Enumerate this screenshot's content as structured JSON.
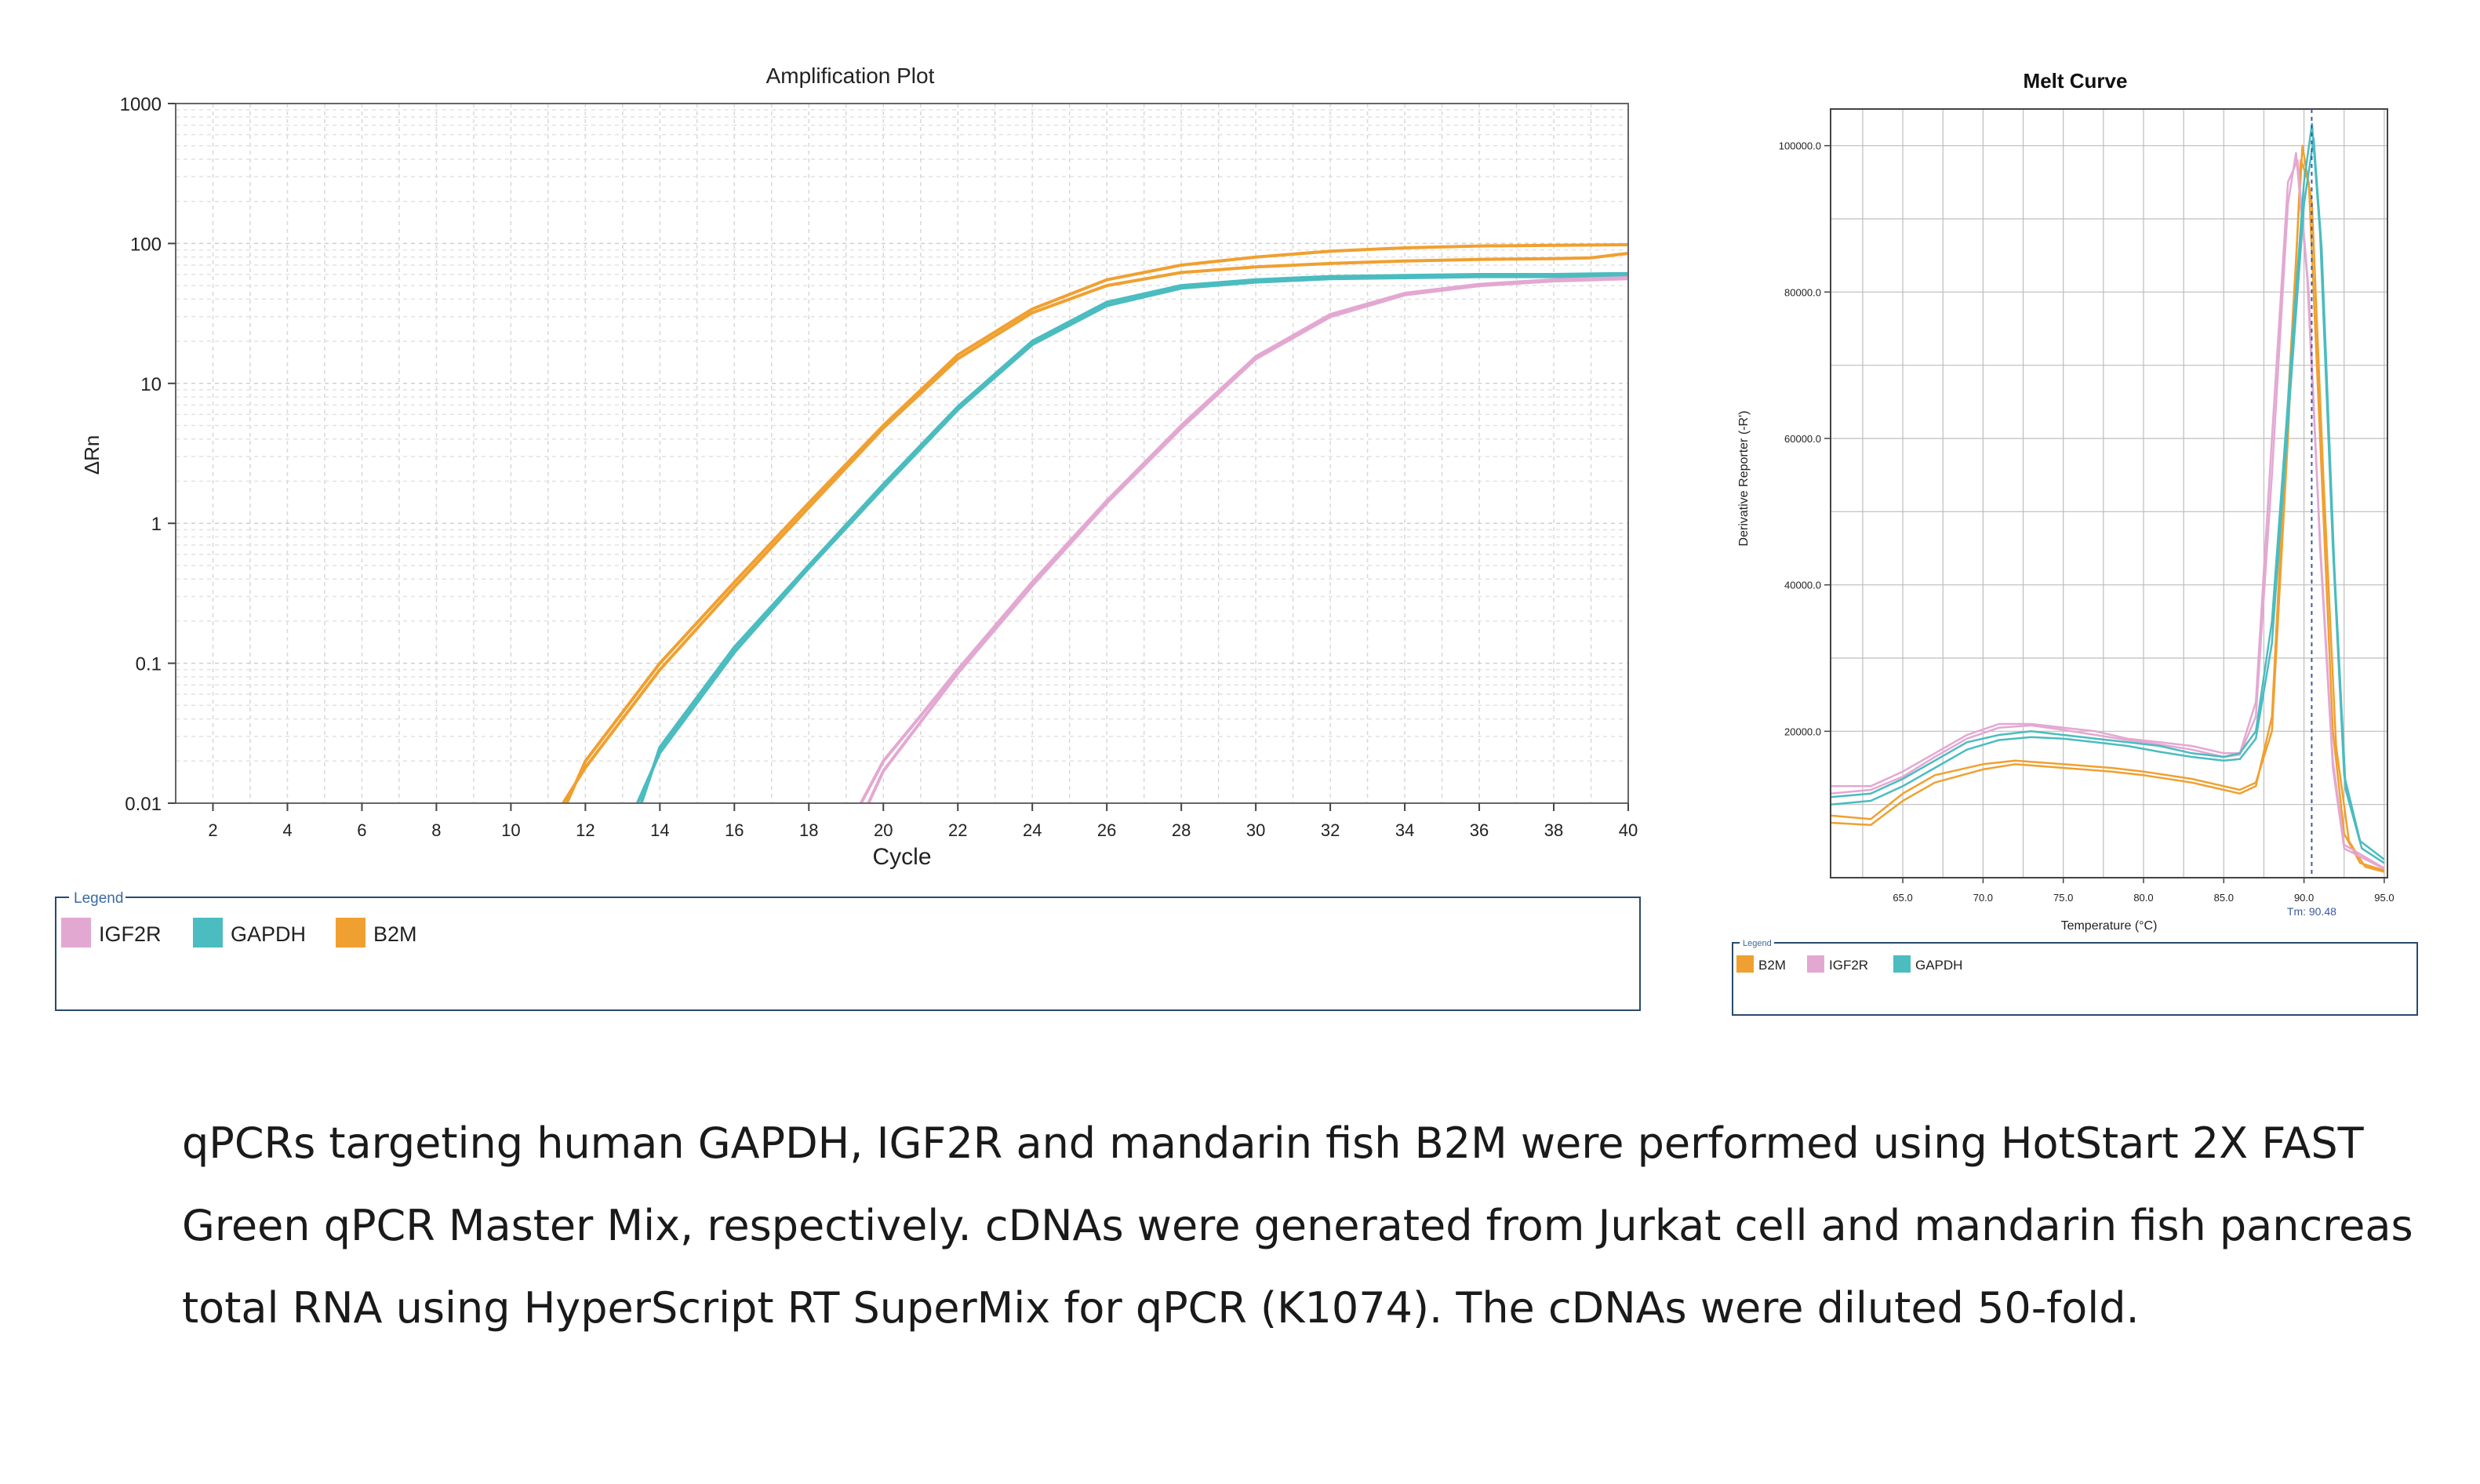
{
  "caption_lines": [
    "qPCRs targeting human GAPDH, IGF2R and mandarin fish B2M were performed using HotStart 2X FAST",
    "Green qPCR Master Mix, respectively. cDNAs were generated from Jurkat cell and mandarin fish pancreas",
    "total RNA using HyperScript RT SuperMix for qPCR (K1074). The cDNAs were diluted 50-fold."
  ],
  "colors": {
    "IGF2R": "#e3a8d2",
    "GAPDH": "#4bbcbf",
    "B2M": "#f0a030",
    "legend_border": "#2a4a6a",
    "legend_title": "#3a6aa0"
  },
  "chart_data": [
    {
      "type": "line",
      "title": "Amplification Plot",
      "xlabel": "Cycle",
      "ylabel": "ΔRn",
      "yscale": "log",
      "xlim": [
        1,
        40
      ],
      "ylim": [
        0.01,
        1000
      ],
      "xticks": [
        "2",
        "4",
        "6",
        "8",
        "10",
        "12",
        "14",
        "16",
        "18",
        "20",
        "22",
        "24",
        "26",
        "28",
        "30",
        "32",
        "34",
        "36",
        "38",
        "40"
      ],
      "yticks": [
        "0.01",
        "0.1",
        "1",
        "10",
        "100",
        "1000"
      ],
      "grid": true,
      "legend": {
        "title": "Legend",
        "position": "bottom",
        "entries": [
          "IGF2R",
          "GAPDH",
          "B2M"
        ]
      },
      "series": [
        {
          "name": "B2M",
          "color": "#f0a030",
          "points": [
            [
              11.5,
              0.01
            ],
            [
              12,
              0.02
            ],
            [
              14,
              0.1
            ],
            [
              16,
              0.38
            ],
            [
              18,
              1.4
            ],
            [
              20,
              5
            ],
            [
              22,
              16
            ],
            [
              24,
              34
            ],
            [
              26,
              55
            ],
            [
              28,
              70
            ],
            [
              30,
              80
            ],
            [
              32,
              88
            ],
            [
              34,
              93
            ],
            [
              36,
              96
            ],
            [
              38,
              97
            ],
            [
              40,
              98
            ]
          ]
        },
        {
          "name": "B2M",
          "color": "#f0a030",
          "points": [
            [
              11.4,
              0.01
            ],
            [
              12,
              0.018
            ],
            [
              14,
              0.09
            ],
            [
              16,
              0.35
            ],
            [
              18,
              1.3
            ],
            [
              20,
              4.8
            ],
            [
              22,
              15
            ],
            [
              24,
              32
            ],
            [
              26,
              50
            ],
            [
              28,
              62
            ],
            [
              30,
              68
            ],
            [
              32,
              72
            ],
            [
              34,
              75
            ],
            [
              36,
              77
            ],
            [
              38,
              78
            ],
            [
              39,
              79
            ],
            [
              40,
              85
            ]
          ]
        },
        {
          "name": "GAPDH",
          "color": "#4bbcbf",
          "points": [
            [
              13.5,
              0.01
            ],
            [
              14,
              0.025
            ],
            [
              16,
              0.13
            ],
            [
              18,
              0.5
            ],
            [
              20,
              1.9
            ],
            [
              22,
              6.8
            ],
            [
              24,
              20
            ],
            [
              26,
              38
            ],
            [
              28,
              50
            ],
            [
              30,
              55
            ],
            [
              32,
              58
            ],
            [
              34,
              59
            ],
            [
              36,
              60
            ],
            [
              38,
              60
            ],
            [
              40,
              61
            ]
          ]
        },
        {
          "name": "GAPDH",
          "color": "#4bbcbf",
          "points": [
            [
              13.4,
              0.01
            ],
            [
              14,
              0.023
            ],
            [
              16,
              0.12
            ],
            [
              18,
              0.48
            ],
            [
              20,
              1.8
            ],
            [
              22,
              6.5
            ],
            [
              24,
              19
            ],
            [
              26,
              36
            ],
            [
              28,
              48
            ],
            [
              30,
              53
            ],
            [
              32,
              56
            ],
            [
              34,
              57
            ],
            [
              36,
              58
            ],
            [
              38,
              58
            ],
            [
              40,
              58
            ]
          ]
        },
        {
          "name": "IGF2R",
          "color": "#e3a8d2",
          "points": [
            [
              19.6,
              0.01
            ],
            [
              20,
              0.017
            ],
            [
              21,
              0.038
            ],
            [
              22,
              0.085
            ],
            [
              24,
              0.36
            ],
            [
              26,
              1.4
            ],
            [
              28,
              4.8
            ],
            [
              30,
              15
            ],
            [
              32,
              30
            ],
            [
              34,
              43
            ],
            [
              36,
              50
            ],
            [
              38,
              54
            ],
            [
              40,
              56
            ]
          ]
        },
        {
          "name": "IGF2R",
          "color": "#e3a8d2",
          "points": [
            [
              19.4,
              0.01
            ],
            [
              20,
              0.02
            ],
            [
              21,
              0.042
            ],
            [
              22,
              0.09
            ],
            [
              24,
              0.38
            ],
            [
              26,
              1.45
            ],
            [
              28,
              5
            ],
            [
              30,
              15.5
            ],
            [
              32,
              31
            ],
            [
              34,
              44
            ],
            [
              36,
              51
            ],
            [
              38,
              55
            ],
            [
              40,
              57
            ]
          ]
        }
      ]
    },
    {
      "type": "line",
      "title": "Melt Curve",
      "xlabel": "Temperature (°C)",
      "ylabel": "Derivative Reporter (-R')",
      "xlim": [
        60.5,
        95.2
      ],
      "ylim": [
        0,
        105000
      ],
      "xticks": [
        "65.0",
        "70.0",
        "75.0",
        "80.0",
        "85.0",
        "90.0",
        "95.0"
      ],
      "yticks": [
        "20000.0",
        "40000.0",
        "60000.0",
        "80000.0",
        "100000.0"
      ],
      "grid": true,
      "tm_label": "Tm: 90.48",
      "tm_value": 90.48,
      "legend": {
        "title": "Legend",
        "position": "bottom",
        "entries": [
          "B2M",
          "IGF2R",
          "GAPDH"
        ]
      },
      "series": [
        {
          "name": "B2M",
          "color": "#f0a030",
          "points": [
            [
              60.5,
              8500
            ],
            [
              63,
              8000
            ],
            [
              65,
              11500
            ],
            [
              67,
              14000
            ],
            [
              70,
              15500
            ],
            [
              72,
              16000
            ],
            [
              75,
              15500
            ],
            [
              78,
              15000
            ],
            [
              80,
              14500
            ],
            [
              83,
              13500
            ],
            [
              85,
              12500
            ],
            [
              86,
              12000
            ],
            [
              87,
              13000
            ],
            [
              88,
              20000
            ],
            [
              89,
              60000
            ],
            [
              89.8,
              98000
            ],
            [
              90.3,
              95000
            ],
            [
              91,
              60000
            ],
            [
              91.8,
              20000
            ],
            [
              92.5,
              6000
            ],
            [
              93.5,
              2000
            ],
            [
              95,
              1000
            ]
          ]
        },
        {
          "name": "B2M",
          "color": "#f0a030",
          "points": [
            [
              60.5,
              7500
            ],
            [
              63,
              7200
            ],
            [
              65,
              10500
            ],
            [
              67,
              13000
            ],
            [
              70,
              14800
            ],
            [
              72,
              15500
            ],
            [
              75,
              15000
            ],
            [
              78,
              14500
            ],
            [
              80,
              14000
            ],
            [
              83,
              13000
            ],
            [
              85,
              12000
            ],
            [
              86,
              11500
            ],
            [
              87,
              12500
            ],
            [
              88,
              22000
            ],
            [
              89,
              65000
            ],
            [
              89.9,
              100000
            ],
            [
              90.5,
              92000
            ],
            [
              91.2,
              55000
            ],
            [
              92,
              18000
            ],
            [
              92.8,
              5000
            ],
            [
              93.8,
              1500
            ],
            [
              95,
              800
            ]
          ]
        },
        {
          "name": "IGF2R",
          "color": "#e3a8d2",
          "points": [
            [
              60.5,
              12500
            ],
            [
              63,
              12500
            ],
            [
              65,
              14500
            ],
            [
              67,
              17000
            ],
            [
              69,
              19500
            ],
            [
              71,
              21000
            ],
            [
              73,
              21000
            ],
            [
              75,
              20500
            ],
            [
              77,
              20000
            ],
            [
              79,
              19000
            ],
            [
              81,
              18500
            ],
            [
              83,
              18000
            ],
            [
              85,
              17000
            ],
            [
              86,
              17000
            ],
            [
              87,
              24000
            ],
            [
              88,
              60000
            ],
            [
              89,
              95000
            ],
            [
              89.6,
              98000
            ],
            [
              90.3,
              80000
            ],
            [
              91,
              45000
            ],
            [
              91.8,
              15000
            ],
            [
              92.5,
              4000
            ],
            [
              95,
              1200
            ]
          ]
        },
        {
          "name": "IGF2R",
          "color": "#e3a8d2",
          "points": [
            [
              60.5,
              11500
            ],
            [
              63,
              12000
            ],
            [
              65,
              13800
            ],
            [
              67,
              16500
            ],
            [
              69,
              19000
            ],
            [
              71,
              20500
            ],
            [
              73,
              20800
            ],
            [
              75,
              20200
            ],
            [
              77,
              19500
            ],
            [
              79,
              18800
            ],
            [
              81,
              18200
            ],
            [
              83,
              17500
            ],
            [
              85,
              16500
            ],
            [
              86,
              16800
            ],
            [
              87,
              22000
            ],
            [
              88,
              55000
            ],
            [
              89,
              92000
            ],
            [
              89.5,
              99000
            ],
            [
              90.2,
              82000
            ],
            [
              91,
              46000
            ],
            [
              91.8,
              16000
            ],
            [
              92.5,
              4500
            ],
            [
              95,
              1300
            ]
          ]
        },
        {
          "name": "GAPDH",
          "color": "#4bbcbf",
          "points": [
            [
              60.5,
              11000
            ],
            [
              63,
              11500
            ],
            [
              65,
              13500
            ],
            [
              67,
              16000
            ],
            [
              69,
              18500
            ],
            [
              71,
              19500
            ],
            [
              73,
              20000
            ],
            [
              75,
              19500
            ],
            [
              77,
              19000
            ],
            [
              79,
              18500
            ],
            [
              81,
              18000
            ],
            [
              83,
              17000
            ],
            [
              85,
              16500
            ],
            [
              86,
              17000
            ],
            [
              87,
              20000
            ],
            [
              88,
              35000
            ],
            [
              89,
              65000
            ],
            [
              90,
              95000
            ],
            [
              90.5,
              103000
            ],
            [
              91,
              88000
            ],
            [
              91.8,
              45000
            ],
            [
              92.5,
              14000
            ],
            [
              93.5,
              5000
            ],
            [
              95,
              2500
            ]
          ]
        },
        {
          "name": "GAPDH",
          "color": "#4bbcbf",
          "points": [
            [
              60.5,
              10000
            ],
            [
              63,
              10500
            ],
            [
              65,
              12500
            ],
            [
              67,
              15000
            ],
            [
              69,
              17500
            ],
            [
              71,
              18800
            ],
            [
              73,
              19200
            ],
            [
              75,
              19000
            ],
            [
              77,
              18500
            ],
            [
              79,
              18000
            ],
            [
              81,
              17200
            ],
            [
              83,
              16500
            ],
            [
              85,
              16000
            ],
            [
              86,
              16200
            ],
            [
              87,
              19000
            ],
            [
              88,
              32000
            ],
            [
              89,
              62000
            ],
            [
              90,
              92000
            ],
            [
              90.6,
              101000
            ],
            [
              91.1,
              86000
            ],
            [
              91.9,
              42000
            ],
            [
              92.6,
              12000
            ],
            [
              93.6,
              4000
            ],
            [
              95,
              2000
            ]
          ]
        }
      ]
    }
  ]
}
